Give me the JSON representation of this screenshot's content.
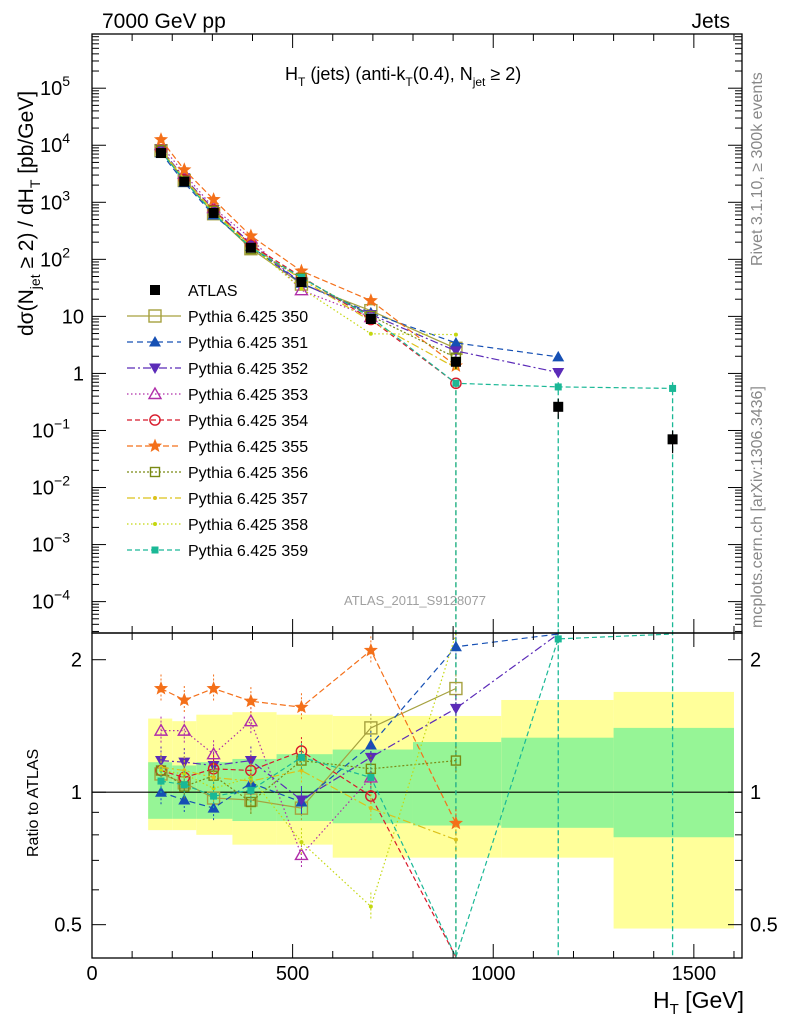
{
  "header": {
    "left": "7000 GeV pp",
    "right": "Jets"
  },
  "side_labels": {
    "rivet": "Rivet 3.1.10, ≥ 300k events",
    "mcplots": "mcplots.cern.ch [arXiv:1306.3436]"
  },
  "watermark": "ATLAS_2011_S9128077",
  "chart_data": {
    "type": "line",
    "title_parts": {
      "a": "H",
      "a_sub": "T",
      "b": " (jets) (anti-k",
      "b_sub": "T",
      "c": "(0.4), N",
      "c_sub": "jet",
      "d": " ≥ 2)"
    },
    "ylabel_parts": {
      "a": "dσ(N",
      "a_sub": "jet",
      "b": " ≥ 2) / dH",
      "b_sub": "T",
      "c": " [pb/GeV]"
    },
    "ratio_ylabel": "Ratio to ATLAS",
    "xlabel": "H_T [GeV]",
    "xlabel_parts": {
      "a": "H",
      "sub": "T",
      "b": " [GeV]"
    },
    "xlim": [
      0,
      1620
    ],
    "ylim_log10": [
      -4.55,
      5.95
    ],
    "ratio_ylim": [
      0.42,
      2.3
    ],
    "x_ticks": [
      {
        "v": 0,
        "t": "0"
      },
      {
        "v": 500,
        "t": "500"
      },
      {
        "v": 1000,
        "t": "1000"
      },
      {
        "v": 1500,
        "t": "1500"
      }
    ],
    "y_ticks": [
      {
        "e": 5,
        "base": "10",
        "exp": "5"
      },
      {
        "e": 4,
        "base": "10",
        "exp": "4"
      },
      {
        "e": 3,
        "base": "10",
        "exp": "3"
      },
      {
        "e": 2,
        "base": "10",
        "exp": "2"
      },
      {
        "e": 1,
        "base": "10",
        "exp": ""
      },
      {
        "e": 0,
        "base": "1",
        "exp": ""
      },
      {
        "e": -1,
        "base": "10",
        "exp": "−1"
      },
      {
        "e": -2,
        "base": "10",
        "exp": "−2"
      },
      {
        "e": -3,
        "base": "10",
        "exp": "−3"
      },
      {
        "e": -4,
        "base": "10",
        "exp": "−4"
      }
    ],
    "ratio_ticks": [
      {
        "v": 0.5,
        "t": "0.5"
      },
      {
        "v": 1,
        "t": "1"
      },
      {
        "v": 2,
        "t": "2"
      }
    ],
    "bins": [
      [
        140,
        200
      ],
      [
        200,
        260
      ],
      [
        260,
        350
      ],
      [
        350,
        460
      ],
      [
        460,
        600
      ],
      [
        600,
        800
      ],
      [
        800,
        1020
      ],
      [
        1020,
        1300
      ],
      [
        1300,
        1600
      ]
    ],
    "x_centers": [
      172,
      230,
      303,
      396,
      522,
      695,
      907,
      1162,
      1447
    ],
    "atlas": {
      "name": "ATLAS",
      "values": [
        7300,
        2300,
        650,
        160,
        40,
        9,
        1.6,
        0.26,
        0.07
      ],
      "err_lo": [
        600,
        200,
        60,
        15,
        4,
        1.2,
        0.4,
        0.1,
        0.03
      ],
      "err_hi": [
        600,
        200,
        60,
        15,
        4,
        1.2,
        0.4,
        0.1,
        0.03
      ]
    },
    "bands": {
      "stat": [
        [
          0.87,
          1.17
        ],
        [
          0.87,
          1.15
        ],
        [
          0.87,
          1.17
        ],
        [
          0.86,
          1.19
        ],
        [
          0.86,
          1.22
        ],
        [
          0.85,
          1.25
        ],
        [
          0.84,
          1.3
        ],
        [
          0.83,
          1.33
        ],
        [
          0.79,
          1.4
        ]
      ],
      "total": [
        [
          0.82,
          1.47
        ],
        [
          0.82,
          1.45
        ],
        [
          0.8,
          1.5
        ],
        [
          0.76,
          1.52
        ],
        [
          0.76,
          1.5
        ],
        [
          0.71,
          1.49
        ],
        [
          0.71,
          1.49
        ],
        [
          0.71,
          1.62
        ],
        [
          0.49,
          1.69
        ]
      ]
    },
    "series": [
      {
        "name": "Pythia 6.425 350",
        "color": "#a6a13f",
        "dash": "",
        "marker": "square-open",
        "ratio": [
          1.1,
          1.05,
          0.97,
          0.96,
          0.92,
          1.4,
          1.72,
          null,
          null
        ]
      },
      {
        "name": "Pythia 6.425 351",
        "color": "#1650b4",
        "dash": "6,4",
        "marker": "triangle-up",
        "ratio": [
          1.0,
          0.96,
          0.92,
          1.05,
          0.95,
          1.28,
          2.14,
          7.5,
          null
        ]
      },
      {
        "name": "Pythia 6.425 352",
        "color": "#5b2bb8",
        "dash": "8,3,2,3",
        "marker": "triangle-down",
        "ratio": [
          1.18,
          1.17,
          1.15,
          1.18,
          0.96,
          1.2,
          1.55,
          4.0,
          null
        ]
      },
      {
        "name": "Pythia 6.425 353",
        "color": "#b02ea9",
        "dash": "1.5,2.5",
        "marker": "triangle-open",
        "ratio": [
          1.38,
          1.38,
          1.22,
          1.45,
          0.72,
          1.08,
          null,
          null,
          null
        ]
      },
      {
        "name": "Pythia 6.425 354",
        "color": "#d8192a",
        "dash": "5,3",
        "marker": "circle-open",
        "ratio": [
          1.12,
          1.08,
          1.13,
          1.12,
          1.24,
          0.98,
          0.42,
          null,
          null
        ]
      },
      {
        "name": "Pythia 6.425 355",
        "color": "#f4701a",
        "dash": "6,3",
        "marker": "star",
        "ratio": [
          1.72,
          1.62,
          1.72,
          1.61,
          1.56,
          2.1,
          0.85,
          null,
          null
        ]
      },
      {
        "name": "Pythia 6.425 356",
        "color": "#7a8a14",
        "dash": "2,2",
        "marker": "square-open-small",
        "ratio": [
          1.12,
          1.03,
          1.09,
          0.95,
          1.18,
          1.13,
          1.18,
          null,
          null
        ]
      },
      {
        "name": "Pythia 6.425 357",
        "color": "#dcc21b",
        "dash": "8,3,2,3",
        "marker": "dot",
        "ratio": [
          1.14,
          1.12,
          1.08,
          1.06,
          1.12,
          0.92,
          0.78,
          null,
          null
        ]
      },
      {
        "name": "Pythia 6.425 358",
        "color": "#c4d70f",
        "dash": "1.5,2.5",
        "marker": "dot",
        "ratio": [
          1.12,
          1.1,
          1.02,
          1.08,
          0.77,
          0.55,
          3.0,
          null,
          null
        ]
      },
      {
        "name": "Pythia 6.425 359",
        "color": "#1ab896",
        "dash": "5,3",
        "marker": "square",
        "ratio": [
          1.06,
          1.04,
          0.98,
          1.01,
          1.2,
          1.08,
          0.42,
          2.23,
          7.8
        ]
      }
    ]
  }
}
